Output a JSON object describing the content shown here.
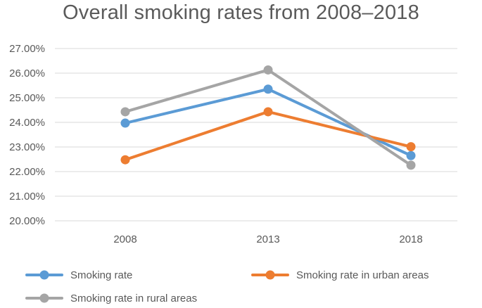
{
  "chart_data": {
    "type": "line",
    "title": "Overall smoking rates from 2008–2018",
    "xlabel": "",
    "ylabel": "",
    "categories": [
      "2008",
      "2013",
      "2018"
    ],
    "ylim": [
      20.0,
      27.0
    ],
    "y_ticks": [
      20.0,
      21.0,
      22.0,
      23.0,
      24.0,
      25.0,
      26.0,
      27.0
    ],
    "y_tick_labels": [
      "20.00%",
      "21.00%",
      "22.00%",
      "23.00%",
      "24.00%",
      "25.00%",
      "26.00%",
      "27.00%"
    ],
    "grid": true,
    "legend_position": "bottom",
    "series": [
      {
        "name": "Smoking rate",
        "values": [
          23.97,
          25.35,
          22.65
        ],
        "color": "#5B9BD5"
      },
      {
        "name": "Smoking rate in urban areas",
        "values": [
          22.48,
          24.43,
          23.01
        ],
        "color": "#ED7D31"
      },
      {
        "name": "Smoking rate in rural areas",
        "values": [
          24.43,
          26.13,
          22.26
        ],
        "color": "#A5A5A5"
      }
    ]
  }
}
